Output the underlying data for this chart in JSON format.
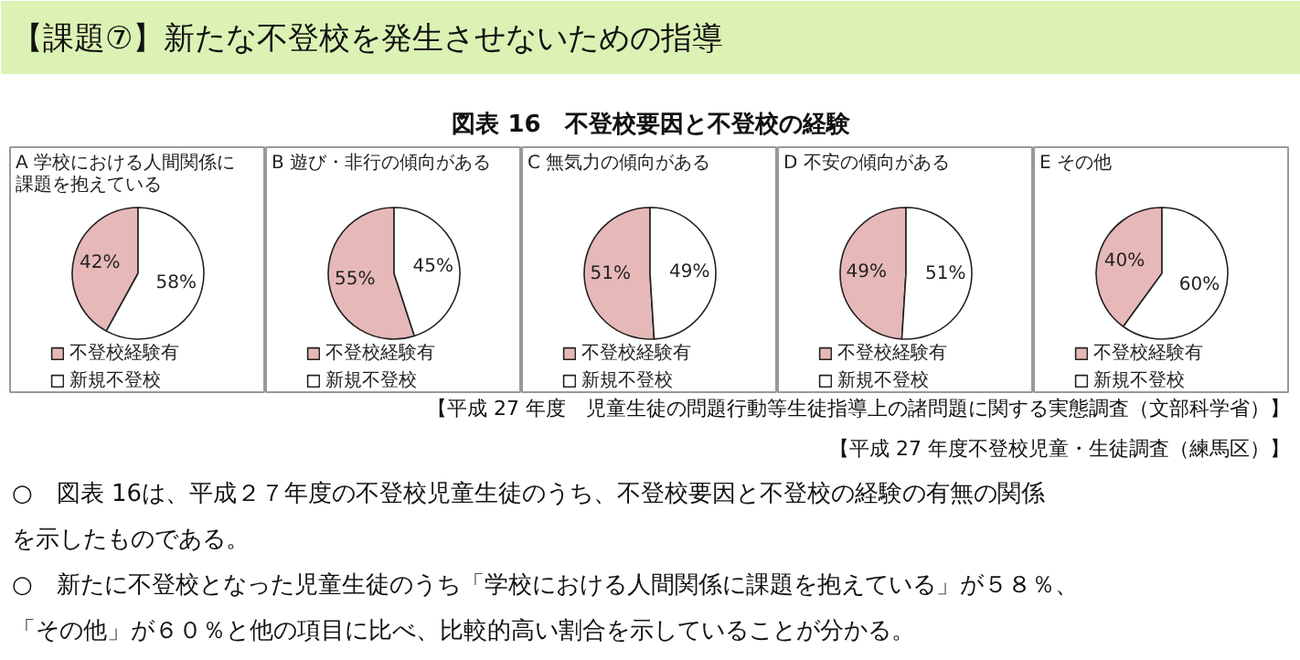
{
  "chart_data": [
    {
      "type": "pie",
      "title": "A 学校における人間関係に課題を抱えている",
      "categories": [
        "不登校経験有",
        "新規不登校"
      ],
      "values": [
        42,
        58
      ],
      "value_labels": [
        "42%",
        "58%"
      ],
      "colors": [
        "#e6b9b8",
        "#ffffff"
      ],
      "legend": "bottom",
      "annotations": [
        "【課題⑦】新たな不登校を発生させないための指導",
        "図表 16　不登校要因と不登校の経験"
      ]
    },
    {
      "type": "pie",
      "title": "B 遊び・非行の傾向がある",
      "categories": [
        "不登校経験有",
        "新規不登校"
      ],
      "values": [
        55,
        45
      ],
      "value_labels": [
        "55%",
        "45%"
      ],
      "colors": [
        "#e6b9b8",
        "#ffffff"
      ],
      "legend": "bottom"
    },
    {
      "type": "pie",
      "title": "C 無気力の傾向がある",
      "categories": [
        "不登校経験有",
        "新規不登校"
      ],
      "values": [
        51,
        49
      ],
      "value_labels": [
        "51%",
        "49%"
      ],
      "colors": [
        "#e6b9b8",
        "#ffffff"
      ],
      "legend": "bottom"
    },
    {
      "type": "pie",
      "title": "D 不安の傾向がある",
      "categories": [
        "不登校経験有",
        "新規不登校"
      ],
      "values": [
        49,
        51
      ],
      "value_labels": [
        "49%",
        "51%"
      ],
      "colors": [
        "#e6b9b8",
        "#ffffff"
      ],
      "legend": "bottom"
    },
    {
      "type": "pie",
      "title": "E その他",
      "categories": [
        "不登校経験有",
        "新規不登校"
      ],
      "values": [
        40,
        60
      ],
      "value_labels": [
        "40%",
        "60%"
      ],
      "colors": [
        "#e6b9b8",
        "#ffffff"
      ],
      "legend": "bottom",
      "annotations": [
        "【平成 27 年度　児童生徒の問題行動等生徒指導上の諸問題に関する実態調査（文部科学省）】",
        "【平成 27 年度不登校児童・生徒調査（練馬区）】",
        "○　図表 16は、平成２７年度の不登校児童生徒のうち、不登校要因と不登校の経験の有無の関係",
        "を示したものである。",
        "○　新たに不登校となった児童生徒のうち「学校における人間関係に課題を抱えている」が５８％、",
        "「その他」が６０％と他の項目に比べ、比較的高い割合を示していることが分かる。"
      ]
    }
  ]
}
